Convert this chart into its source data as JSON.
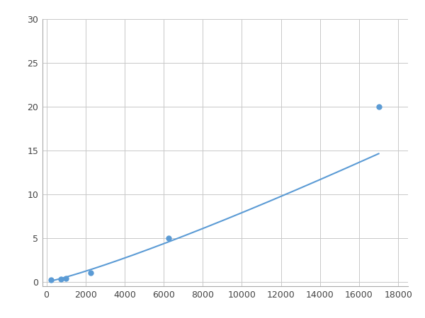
{
  "x": [
    250,
    750,
    1000,
    2250,
    6250,
    17000
  ],
  "y": [
    0.2,
    0.3,
    0.35,
    1.0,
    5.0,
    20.0
  ],
  "line_color": "#5B9BD5",
  "marker_color": "#5B9BD5",
  "marker_size": 5,
  "line_width": 1.5,
  "xlim": [
    -200,
    18500
  ],
  "ylim": [
    -0.5,
    30
  ],
  "xticks": [
    0,
    2000,
    4000,
    6000,
    8000,
    10000,
    12000,
    14000,
    16000,
    18000
  ],
  "yticks": [
    0,
    5,
    10,
    15,
    20,
    25,
    30
  ],
  "grid_color": "#C8C8C8",
  "bg_color": "#FFFFFF",
  "spine_color": "#AAAAAA",
  "figsize": [
    6.0,
    4.5
  ],
  "dpi": 100
}
